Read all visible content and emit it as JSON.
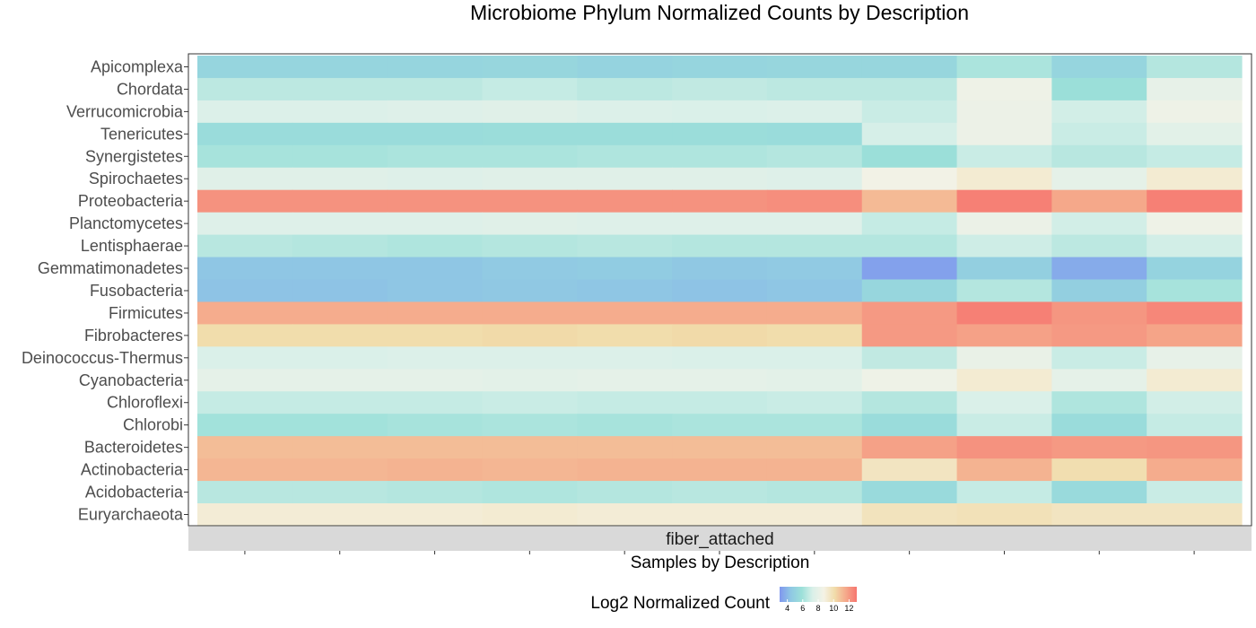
{
  "chart_data": {
    "type": "heatmap",
    "title": "Microbiome Phylum Normalized Counts by Description",
    "xlabel": "Samples by Description",
    "facet_label": "fiber_attached",
    "legend": {
      "title": "Log2 Normalized Count",
      "ticks": [
        "4",
        "6",
        "8",
        "10",
        "12"
      ],
      "min": 3,
      "max": 13,
      "position": "bottom",
      "colors": [
        "#8097ee",
        "#8fc7e4",
        "#9ce0d9",
        "#daf0e9",
        "#f4f2e6",
        "#f1dcaa",
        "#f5a98b",
        "#f6756f"
      ]
    },
    "n_samples": 11,
    "rows": [
      {
        "label": "Apicomplexa",
        "values": [
          5.2,
          5.2,
          5.2,
          5.3,
          5.1,
          5.2,
          5.3,
          5.3,
          6.2,
          5.2,
          6.4
        ]
      },
      {
        "label": "Chordata",
        "values": [
          6.6,
          6.6,
          6.6,
          6.8,
          6.6,
          6.7,
          6.6,
          6.6,
          8.4,
          5.8,
          8.0
        ]
      },
      {
        "label": "Verrucomicrobia",
        "values": [
          7.4,
          7.4,
          7.5,
          7.6,
          7.4,
          7.3,
          7.4,
          6.9,
          8.3,
          7.1,
          8.4
        ]
      },
      {
        "label": "Tenericutes",
        "values": [
          5.6,
          5.6,
          5.6,
          5.7,
          5.7,
          5.7,
          5.6,
          7.2,
          8.3,
          6.9,
          7.7
        ]
      },
      {
        "label": "Synergistetes",
        "values": [
          6.1,
          6.1,
          6.2,
          6.2,
          6.3,
          6.3,
          6.4,
          5.8,
          6.9,
          6.5,
          6.8
        ]
      },
      {
        "label": "Spirochaetes",
        "values": [
          7.6,
          7.6,
          7.5,
          7.6,
          7.6,
          7.6,
          7.5,
          8.6,
          9.2,
          7.9,
          9.2
        ]
      },
      {
        "label": "Proteobacteria",
        "values": [
          12.2,
          12.2,
          12.2,
          12.2,
          12.2,
          12.2,
          12.3,
          11.1,
          12.7,
          11.6,
          12.7
        ]
      },
      {
        "label": "Planctomycetes",
        "values": [
          7.5,
          7.5,
          7.5,
          7.6,
          7.5,
          7.5,
          7.5,
          6.8,
          8.2,
          7.1,
          8.4
        ]
      },
      {
        "label": "Lentisphaerae",
        "values": [
          6.5,
          6.4,
          6.3,
          6.4,
          6.5,
          6.4,
          6.4,
          6.4,
          7.0,
          6.6,
          7.1
        ]
      },
      {
        "label": "Gemmatimonadetes",
        "values": [
          4.4,
          4.4,
          4.4,
          4.6,
          4.7,
          4.5,
          4.6,
          3.3,
          4.9,
          3.6,
          5.1
        ]
      },
      {
        "label": "Fusobacteria",
        "values": [
          4.3,
          4.3,
          4.4,
          4.5,
          4.4,
          4.3,
          4.4,
          5.3,
          6.4,
          4.9,
          6.1
        ]
      },
      {
        "label": "Firmicutes",
        "values": [
          11.5,
          11.5,
          11.5,
          11.5,
          11.5,
          11.5,
          11.5,
          12.0,
          12.7,
          12.1,
          12.5
        ]
      },
      {
        "label": "Fibrobacteres",
        "values": [
          10.1,
          10.1,
          10.1,
          10.2,
          10.1,
          10.2,
          10.1,
          12.0,
          11.8,
          12.0,
          11.7
        ]
      },
      {
        "label": "Deinococcus-Thermus",
        "values": [
          7.3,
          7.3,
          7.4,
          7.4,
          7.4,
          7.3,
          7.3,
          6.7,
          8.1,
          6.9,
          8.0
        ]
      },
      {
        "label": "Cyanobacteria",
        "values": [
          7.9,
          7.9,
          7.9,
          7.8,
          7.9,
          7.9,
          7.8,
          8.4,
          9.2,
          7.9,
          9.2
        ]
      },
      {
        "label": "Chloroflexi",
        "values": [
          6.8,
          6.8,
          6.8,
          6.9,
          6.8,
          6.8,
          6.9,
          6.4,
          7.3,
          6.3,
          7.1
        ]
      },
      {
        "label": "Chlorobi",
        "values": [
          6.0,
          6.0,
          6.1,
          6.2,
          6.1,
          6.2,
          6.2,
          5.6,
          6.9,
          5.6,
          6.8
        ]
      },
      {
        "label": "Bacteroidetes",
        "values": [
          11.0,
          11.0,
          11.0,
          11.0,
          11.0,
          11.0,
          11.0,
          11.8,
          12.2,
          12.0,
          12.1
        ]
      },
      {
        "label": "Actinobacteria",
        "values": [
          11.2,
          11.2,
          11.3,
          11.2,
          11.3,
          11.3,
          11.3,
          9.6,
          11.3,
          10.0,
          11.5
        ]
      },
      {
        "label": "Acidobacteria",
        "values": [
          6.5,
          6.5,
          6.4,
          6.3,
          6.4,
          6.5,
          6.4,
          5.5,
          6.8,
          5.5,
          6.9
        ]
      },
      {
        "label": "Euryarchaeota",
        "values": [
          9.1,
          9.1,
          9.1,
          9.2,
          9.1,
          9.1,
          9.1,
          9.7,
          9.8,
          9.6,
          9.6
        ]
      }
    ]
  }
}
